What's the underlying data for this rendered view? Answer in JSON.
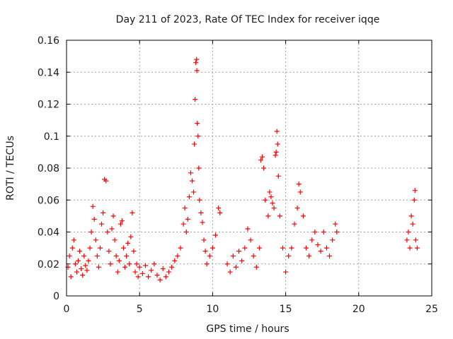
{
  "chart_data": {
    "type": "scatter",
    "title": "Day 211 of 2023, Rate Of TEC Index for receiver iqqe",
    "xlabel": "GPS time / hours",
    "ylabel": "ROTI / TECUs",
    "xlim": [
      0,
      25
    ],
    "ylim": [
      0,
      0.16
    ],
    "xticks": [
      0,
      5,
      10,
      15,
      20,
      25
    ],
    "yticks": [
      0,
      0.02,
      0.04,
      0.06,
      0.08,
      0.1,
      0.12,
      0.14,
      0.16
    ],
    "ytick_labels": [
      "0",
      "0.02",
      "0.04",
      "0.06",
      "0.08",
      "0.1",
      "0.12",
      "0.14",
      "0.16"
    ],
    "grid": true,
    "marker": "plus",
    "marker_color": "#ff0000",
    "points": [
      [
        0.1,
        0.018
      ],
      [
        0.2,
        0.025
      ],
      [
        0.3,
        0.012
      ],
      [
        0.4,
        0.03
      ],
      [
        0.5,
        0.035
      ],
      [
        0.6,
        0.02
      ],
      [
        0.7,
        0.015
      ],
      [
        0.8,
        0.022
      ],
      [
        0.9,
        0.028
      ],
      [
        1.0,
        0.017
      ],
      [
        1.1,
        0.013
      ],
      [
        1.2,
        0.025
      ],
      [
        1.3,
        0.019
      ],
      [
        1.4,
        0.016
      ],
      [
        1.5,
        0.022
      ],
      [
        1.6,
        0.03
      ],
      [
        1.7,
        0.04
      ],
      [
        1.8,
        0.056
      ],
      [
        1.9,
        0.048
      ],
      [
        2.0,
        0.035
      ],
      [
        2.1,
        0.025
      ],
      [
        2.2,
        0.018
      ],
      [
        2.3,
        0.03
      ],
      [
        2.4,
        0.045
      ],
      [
        2.5,
        0.052
      ],
      [
        2.6,
        0.073
      ],
      [
        2.7,
        0.072
      ],
      [
        2.8,
        0.04
      ],
      [
        2.9,
        0.028
      ],
      [
        3.0,
        0.02
      ],
      [
        3.1,
        0.042
      ],
      [
        3.2,
        0.05
      ],
      [
        3.3,
        0.035
      ],
      [
        3.4,
        0.025
      ],
      [
        3.5,
        0.015
      ],
      [
        3.6,
        0.022
      ],
      [
        3.7,
        0.045
      ],
      [
        3.8,
        0.047
      ],
      [
        3.9,
        0.03
      ],
      [
        4.0,
        0.018
      ],
      [
        4.1,
        0.025
      ],
      [
        4.2,
        0.033
      ],
      [
        4.3,
        0.02
      ],
      [
        4.4,
        0.037
      ],
      [
        4.5,
        0.052
      ],
      [
        4.6,
        0.028
      ],
      [
        4.7,
        0.015
      ],
      [
        4.8,
        0.02
      ],
      [
        4.9,
        0.012
      ],
      [
        5.0,
        0.018
      ],
      [
        5.2,
        0.014
      ],
      [
        5.4,
        0.019
      ],
      [
        5.6,
        0.012
      ],
      [
        5.8,
        0.016
      ],
      [
        6.0,
        0.02
      ],
      [
        6.2,
        0.013
      ],
      [
        6.4,
        0.01
      ],
      [
        6.6,
        0.017
      ],
      [
        6.8,
        0.012
      ],
      [
        7.0,
        0.015
      ],
      [
        7.2,
        0.018
      ],
      [
        7.4,
        0.022
      ],
      [
        7.6,
        0.025
      ],
      [
        7.8,
        0.03
      ],
      [
        8.0,
        0.045
      ],
      [
        8.1,
        0.055
      ],
      [
        8.2,
        0.04
      ],
      [
        8.3,
        0.048
      ],
      [
        8.4,
        0.062
      ],
      [
        8.5,
        0.077
      ],
      [
        8.6,
        0.072
      ],
      [
        8.7,
        0.065
      ],
      [
        8.75,
        0.095
      ],
      [
        8.8,
        0.123
      ],
      [
        8.85,
        0.146
      ],
      [
        8.9,
        0.148
      ],
      [
        8.92,
        0.141
      ],
      [
        8.95,
        0.108
      ],
      [
        9.0,
        0.1
      ],
      [
        9.05,
        0.08
      ],
      [
        9.1,
        0.06
      ],
      [
        9.2,
        0.052
      ],
      [
        9.3,
        0.046
      ],
      [
        9.4,
        0.035
      ],
      [
        9.5,
        0.028
      ],
      [
        9.6,
        0.02
      ],
      [
        9.8,
        0.025
      ],
      [
        10.0,
        0.03
      ],
      [
        10.2,
        0.038
      ],
      [
        10.4,
        0.055
      ],
      [
        10.5,
        0.052
      ],
      [
        11.0,
        0.02
      ],
      [
        11.2,
        0.015
      ],
      [
        11.4,
        0.025
      ],
      [
        11.6,
        0.018
      ],
      [
        11.8,
        0.028
      ],
      [
        12.0,
        0.022
      ],
      [
        12.2,
        0.03
      ],
      [
        12.4,
        0.042
      ],
      [
        12.6,
        0.035
      ],
      [
        12.8,
        0.025
      ],
      [
        13.0,
        0.018
      ],
      [
        13.2,
        0.03
      ],
      [
        13.3,
        0.085
      ],
      [
        13.4,
        0.087
      ],
      [
        13.5,
        0.08
      ],
      [
        13.6,
        0.06
      ],
      [
        13.8,
        0.05
      ],
      [
        13.9,
        0.065
      ],
      [
        14.0,
        0.062
      ],
      [
        14.1,
        0.058
      ],
      [
        14.2,
        0.055
      ],
      [
        14.3,
        0.088
      ],
      [
        14.35,
        0.09
      ],
      [
        14.4,
        0.103
      ],
      [
        14.45,
        0.095
      ],
      [
        14.5,
        0.075
      ],
      [
        14.6,
        0.05
      ],
      [
        14.8,
        0.03
      ],
      [
        15.0,
        0.015
      ],
      [
        15.2,
        0.025
      ],
      [
        15.4,
        0.03
      ],
      [
        15.6,
        0.045
      ],
      [
        15.8,
        0.055
      ],
      [
        15.9,
        0.07
      ],
      [
        16.0,
        0.065
      ],
      [
        16.2,
        0.05
      ],
      [
        16.4,
        0.03
      ],
      [
        16.6,
        0.025
      ],
      [
        16.8,
        0.035
      ],
      [
        17.0,
        0.04
      ],
      [
        17.2,
        0.032
      ],
      [
        17.4,
        0.028
      ],
      [
        17.6,
        0.04
      ],
      [
        17.8,
        0.03
      ],
      [
        18.0,
        0.025
      ],
      [
        18.2,
        0.035
      ],
      [
        18.4,
        0.045
      ],
      [
        18.5,
        0.04
      ],
      [
        23.3,
        0.035
      ],
      [
        23.4,
        0.04
      ],
      [
        23.5,
        0.03
      ],
      [
        23.6,
        0.05
      ],
      [
        23.7,
        0.045
      ],
      [
        23.8,
        0.06
      ],
      [
        23.85,
        0.066
      ],
      [
        23.9,
        0.035
      ],
      [
        24.0,
        0.03
      ]
    ]
  }
}
